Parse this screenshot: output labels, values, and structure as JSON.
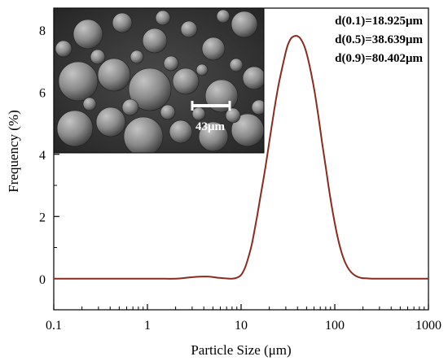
{
  "chart_data": {
    "type": "line",
    "xscale": "log",
    "xlabel": "Particle Size (μm)",
    "ylabel": "Frequency (%)",
    "xlim": [
      0.1,
      1000
    ],
    "ylim": [
      -1,
      8.7
    ],
    "x_ticks": [
      0.1,
      1,
      10,
      100,
      1000
    ],
    "x_tick_labels": [
      "0.1",
      "1",
      "10",
      "100",
      "1000"
    ],
    "y_ticks": [
      0,
      2,
      4,
      6,
      8
    ],
    "y_tick_labels": [
      "0",
      "2",
      "4",
      "6",
      "8"
    ],
    "grid": false,
    "line_color": "#8b2a1f",
    "series": [
      {
        "x": [
          0.1,
          1,
          2,
          2.6,
          3.3,
          4,
          4.8,
          5.7,
          6.8,
          8,
          9,
          10,
          11,
          12,
          13,
          14,
          15,
          16,
          18,
          20,
          22.5,
          25,
          28,
          31,
          34,
          37,
          40,
          43,
          47,
          51,
          56,
          61,
          67,
          73,
          80,
          88,
          97,
          107,
          118,
          130,
          143,
          158,
          175,
          195,
          220,
          250,
          300,
          500,
          1000
        ],
        "y": [
          0,
          0,
          0,
          0.03,
          0.06,
          0.07,
          0.06,
          0.03,
          0.01,
          0,
          0.03,
          0.12,
          0.35,
          0.7,
          1.1,
          1.6,
          2.1,
          2.6,
          3.5,
          4.4,
          5.4,
          6.2,
          6.9,
          7.45,
          7.72,
          7.8,
          7.8,
          7.72,
          7.5,
          7.15,
          6.6,
          6.0,
          5.2,
          4.4,
          3.6,
          2.75,
          2.0,
          1.35,
          0.85,
          0.5,
          0.28,
          0.14,
          0.06,
          0.02,
          0.01,
          0,
          0,
          0,
          0
        ]
      }
    ],
    "annotations": [
      "d(0.1)=18.925μm",
      "d(0.5)=38.639μm",
      "d(0.9)=80.402μm"
    ],
    "inset": {
      "kind": "SEM micrograph of spherical particles",
      "scale_bar_label": "43μm"
    }
  }
}
